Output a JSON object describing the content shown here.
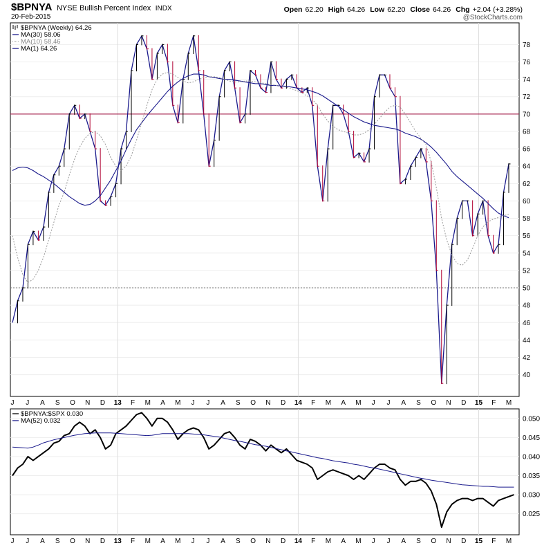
{
  "header": {
    "symbol": "$BPNYA",
    "name": "NYSE Bullish Percent Index",
    "exchange": "INDX",
    "date": "20-Feb-2015",
    "open_label": "Open",
    "open": "62.20",
    "high_label": "High",
    "high": "64.26",
    "low_label": "Low",
    "low": "62.20",
    "close_label": "Close",
    "close": "64.26",
    "chg_label": "Chg",
    "chg": "+2.04 (+3.28%)",
    "logo": "@StockCharts.com"
  },
  "colors": {
    "price": "#000000",
    "down_tick": "#b00030",
    "ma": "#1a1a8c",
    "ma10": "#999999",
    "ref_line": "#990033",
    "grid": "#eeeeee"
  },
  "chart_data": [
    {
      "type": "line",
      "title": "$BPNYA NYSE Bullish Percent Index INDX",
      "legend": [
        {
          "label": "$BPNYA (Weekly) 64.26",
          "icon": "ohlc-bar-icon"
        },
        {
          "label": "MA(30) 58.06",
          "icon": "solid-line-icon"
        },
        {
          "label": "MA(10) 58.46",
          "icon": "dotted-line-icon"
        },
        {
          "label": "MA(1) 64.26",
          "icon": "solid-line-icon"
        }
      ],
      "legend_position": "top-left",
      "x_ticks": [
        "J",
        "J",
        "A",
        "S",
        "O",
        "N",
        "D",
        "13",
        "F",
        "M",
        "A",
        "M",
        "J",
        "J",
        "A",
        "S",
        "O",
        "N",
        "D",
        "14",
        "F",
        "M",
        "A",
        "M",
        "J",
        "J",
        "A",
        "S",
        "O",
        "N",
        "D",
        "15",
        "F",
        "M"
      ],
      "ylim": [
        37.5,
        80.5
      ],
      "yticks": [
        40,
        42,
        44,
        46,
        48,
        50,
        52,
        54,
        56,
        58,
        60,
        62,
        64,
        66,
        68,
        70,
        72,
        74,
        76,
        78
      ],
      "reference_lines": [
        70,
        50
      ],
      "series": [
        {
          "name": "$BPNYA (Weekly)",
          "values": [
            46,
            48.5,
            50,
            55,
            56.5,
            55.5,
            57,
            61,
            63,
            64,
            66,
            70,
            71,
            69.5,
            70,
            68,
            66,
            60,
            59.5,
            60.5,
            62,
            66,
            68,
            75,
            78,
            79,
            77.5,
            74,
            77,
            78,
            76,
            71,
            69,
            74,
            77,
            79,
            75,
            70,
            64,
            67,
            72,
            75,
            76,
            73,
            69,
            70,
            75,
            74.5,
            73,
            72.5,
            76,
            74,
            73,
            74,
            74.5,
            73,
            72.5,
            73,
            71,
            64,
            60,
            66,
            71,
            71,
            70,
            68,
            65,
            65.5,
            64.5,
            66,
            72,
            74.5,
            74.5,
            73,
            72,
            62,
            62.5,
            64,
            65,
            66,
            64.5,
            60,
            52,
            39,
            48,
            55,
            58,
            60,
            60,
            56,
            58.5,
            60,
            56,
            54,
            55,
            61,
            64.26
          ]
        },
        {
          "name": "MA(30)",
          "values": [
            63.5,
            63.8,
            63.9,
            63.8,
            63.5,
            63.1,
            62.8,
            62.4,
            62.0,
            61.5,
            61.0,
            60.5,
            60.1,
            59.7,
            59.5,
            59.6,
            60.0,
            60.6,
            61.5,
            62.4,
            63.5,
            64.6,
            65.9,
            67.1,
            68.2,
            69.0,
            69.8,
            70.5,
            71.2,
            71.9,
            72.6,
            73.2,
            73.7,
            74.1,
            74.4,
            74.6,
            74.6,
            74.5,
            74.3,
            74.2,
            74.1,
            74.0,
            74.0,
            73.9,
            73.8,
            73.7,
            73.6,
            73.5,
            73.5,
            73.4,
            73.3,
            73.3,
            73.2,
            73.2,
            73.1,
            73.0,
            72.9,
            72.8,
            72.6,
            72.4,
            72.1,
            71.7,
            71.3,
            70.9,
            70.5,
            70.1,
            69.7,
            69.4,
            69.1,
            68.9,
            68.7,
            68.6,
            68.5,
            68.4,
            68.3,
            68.1,
            67.8,
            67.6,
            67.4,
            67.1,
            66.7,
            66.2,
            65.6,
            64.9,
            64.2,
            63.4,
            62.8,
            62.3,
            61.8,
            61.3,
            60.8,
            60.3,
            59.7,
            59.1,
            58.6,
            58.3,
            58.06
          ]
        },
        {
          "name": "MA(10)",
          "values": [
            56,
            53.5,
            51.5,
            50.6,
            51,
            52,
            53.5,
            55.5,
            57.5,
            59.5,
            61,
            63,
            64.8,
            66.2,
            67.2,
            67.8,
            68,
            67.5,
            66.5,
            65,
            64,
            63.5,
            64,
            65.2,
            67,
            69,
            71,
            72.8,
            74,
            74.6,
            74.8,
            74.6,
            74.2,
            73.8,
            73.6,
            73.7,
            74,
            74.2,
            74.3,
            74.3,
            74.2,
            74,
            73.8,
            73.7,
            73.7,
            73.8,
            73.8,
            73.7,
            73.6,
            73.5,
            73.4,
            73.3,
            73.2,
            73.1,
            72.9,
            72.7,
            72.4,
            72.1,
            71.7,
            71,
            70,
            69.2,
            68.6,
            68.2,
            68,
            67.8,
            67.6,
            67.6,
            67.8,
            68.2,
            68.8,
            69.5,
            70.2,
            70.8,
            71,
            70.8,
            70,
            69,
            68,
            67.2,
            66.5,
            64.5,
            61.5,
            58,
            55.5,
            53.8,
            52.8,
            52.6,
            53.2,
            54.5,
            56,
            57,
            57.6,
            57.9,
            58.1,
            58.3,
            58.46
          ]
        }
      ]
    },
    {
      "type": "line",
      "title": "$BPNYA:$SPX 0.030",
      "legend": [
        {
          "label": "$BPNYA:$SPX 0.030",
          "icon": "solid-line-icon"
        },
        {
          "label": "MA(52) 0.032",
          "icon": "solid-line-icon"
        }
      ],
      "legend_position": "top-left",
      "x_ticks": [
        "J",
        "J",
        "A",
        "S",
        "O",
        "N",
        "D",
        "13",
        "F",
        "M",
        "A",
        "M",
        "J",
        "J",
        "A",
        "S",
        "O",
        "N",
        "D",
        "14",
        "F",
        "M",
        "A",
        "M",
        "J",
        "J",
        "A",
        "S",
        "O",
        "N",
        "D",
        "15",
        "F",
        "M"
      ],
      "ylim": [
        0.0195,
        0.0525
      ],
      "yticks": [
        0.025,
        0.03,
        0.035,
        0.04,
        0.045,
        0.05
      ],
      "series": [
        {
          "name": "$BPNYA:$SPX",
          "values": [
            0.035,
            0.037,
            0.038,
            0.04,
            0.039,
            0.04,
            0.041,
            0.042,
            0.0435,
            0.044,
            0.0455,
            0.046,
            0.048,
            0.049,
            0.048,
            0.046,
            0.047,
            0.045,
            0.042,
            0.043,
            0.046,
            0.047,
            0.048,
            0.0495,
            0.051,
            0.0515,
            0.05,
            0.048,
            0.05,
            0.05,
            0.049,
            0.047,
            0.0445,
            0.046,
            0.047,
            0.0475,
            0.047,
            0.045,
            0.042,
            0.043,
            0.0445,
            0.046,
            0.0465,
            0.045,
            0.043,
            0.042,
            0.0445,
            0.044,
            0.043,
            0.0415,
            0.043,
            0.042,
            0.041,
            0.042,
            0.0405,
            0.039,
            0.0385,
            0.038,
            0.037,
            0.034,
            0.035,
            0.036,
            0.0365,
            0.036,
            0.0355,
            0.035,
            0.034,
            0.035,
            0.034,
            0.0355,
            0.037,
            0.038,
            0.038,
            0.037,
            0.0365,
            0.034,
            0.0325,
            0.0335,
            0.0335,
            0.034,
            0.033,
            0.031,
            0.0275,
            0.0215,
            0.0255,
            0.0275,
            0.0285,
            0.029,
            0.029,
            0.0285,
            0.029,
            0.029,
            0.028,
            0.027,
            0.0285,
            0.029,
            0.0295,
            0.03
          ]
        },
        {
          "name": "MA(52)",
          "values": [
            0.0425,
            0.0424,
            0.0423,
            0.0422,
            0.0425,
            0.043,
            0.0436,
            0.044,
            0.0444,
            0.0447,
            0.045,
            0.0453,
            0.0456,
            0.0458,
            0.046,
            0.0461,
            0.0462,
            0.0462,
            0.0462,
            0.0462,
            0.0461,
            0.046,
            0.0459,
            0.0458,
            0.0457,
            0.0456,
            0.0455,
            0.0456,
            0.0458,
            0.046,
            0.046,
            0.046,
            0.046,
            0.046,
            0.046,
            0.0459,
            0.0458,
            0.0457,
            0.0455,
            0.0453,
            0.0451,
            0.0448,
            0.0445,
            0.0442,
            0.044,
            0.0437,
            0.0434,
            0.0431,
            0.0429,
            0.0427,
            0.0424,
            0.0421,
            0.0418,
            0.0415,
            0.0412,
            0.0409,
            0.0406,
            0.0403,
            0.04,
            0.0397,
            0.0395,
            0.0392,
            0.0389,
            0.0387,
            0.0385,
            0.0383,
            0.038,
            0.0378,
            0.0375,
            0.0372,
            0.037,
            0.0367,
            0.0364,
            0.0361,
            0.0358,
            0.0355,
            0.0352,
            0.0349,
            0.0346,
            0.0343,
            0.0341,
            0.0338,
            0.0336,
            0.0334,
            0.0332,
            0.033,
            0.0328,
            0.0326,
            0.0325,
            0.0324,
            0.0323,
            0.0322,
            0.0322,
            0.0321,
            0.032,
            0.032,
            0.032,
            0.032
          ]
        }
      ]
    }
  ]
}
